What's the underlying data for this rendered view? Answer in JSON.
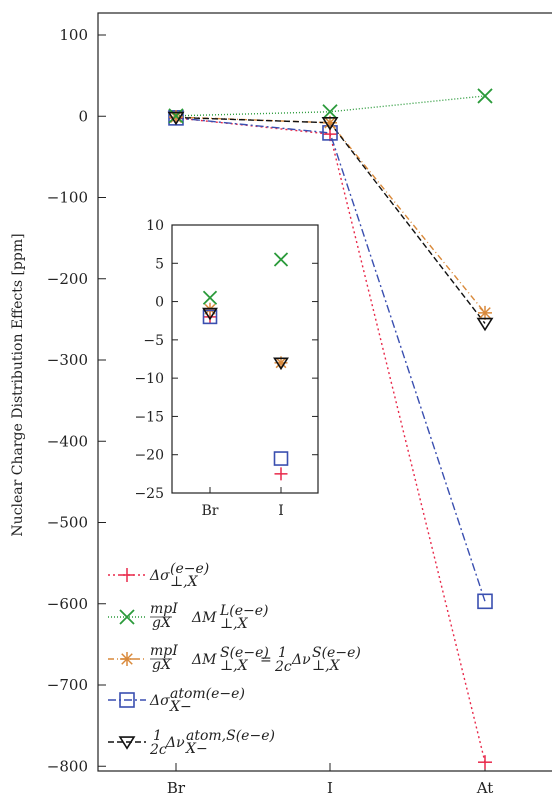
{
  "chart_data": [
    {
      "type": "line",
      "title": "",
      "xlabel": "",
      "ylabel": "Nuclear Charge Distribution Effects [ppm]",
      "categories": [
        "Br",
        "I",
        "At"
      ],
      "yticks": [
        100,
        0,
        -100,
        -200,
        -300,
        -400,
        -500,
        -600,
        -700,
        -800
      ],
      "ylim": [
        -830,
        130
      ],
      "grid": false,
      "legend_position": "bottom-left",
      "series": [
        {
          "name": "Δσ⊥,X(e−e)",
          "values": [
            -2,
            -22,
            -795
          ],
          "color": "#e8294a",
          "marker": "plus",
          "dash": "2,3"
        },
        {
          "name": "(mpI/gX) ΔM⊥,X L(e−e)",
          "values": [
            0.5,
            5.5,
            25
          ],
          "color": "#2a9a3a",
          "marker": "x",
          "dash": "1,2"
        },
        {
          "name": "(mpI/gX) ΔM⊥,X S(e−e) = (1/2c) Δν⊥,X S(e−e)",
          "values": [
            -1,
            -8,
            -242
          ],
          "color": "#d9893a",
          "marker": "asterisk",
          "dash": "6,3,1,3"
        },
        {
          "name": "ΔσX− atom(e−e)",
          "values": [
            -2,
            -20.5,
            -597
          ],
          "color": "#3a4fb0",
          "marker": "square",
          "dash": "8,3,2,3"
        },
        {
          "name": "(1/2c) ΔνX− atom,S(e−e)",
          "values": [
            -1.5,
            -8,
            -255
          ],
          "color": "#111111",
          "marker": "triangle-down",
          "dash": "6,3"
        }
      ]
    },
    {
      "type": "scatter",
      "title": "",
      "categories": [
        "Br",
        "I"
      ],
      "yticks": [
        10,
        5,
        0,
        -5,
        -10,
        -15,
        -20,
        -25
      ],
      "ylim": [
        -25,
        10
      ],
      "points": [
        {
          "series": 0,
          "values": [
            -2,
            -22.5
          ]
        },
        {
          "series": 1,
          "values": [
            0.5,
            5.5
          ]
        },
        {
          "series": 2,
          "values": [
            -1,
            -8
          ]
        },
        {
          "series": 3,
          "values": [
            -2,
            -20.5
          ]
        },
        {
          "series": 4,
          "values": [
            -1.5,
            -8
          ]
        }
      ]
    }
  ]
}
